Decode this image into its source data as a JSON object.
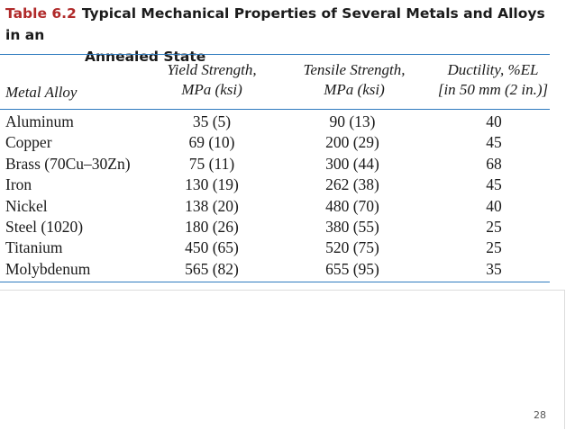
{
  "table": {
    "label": "Table 6.2",
    "title_line1": "Typical Mechanical Properties of Several Metals and Alloys in an",
    "title_line2": "Annealed State",
    "headers": {
      "alloy": "Metal Alloy",
      "yield_line1": "Yield Strength,",
      "yield_line2": "MPa (ksi)",
      "tensile_line1": "Tensile Strength,",
      "tensile_line2": "MPa (ksi)",
      "ductility_line1": "Ductility, %EL",
      "ductility_line2": "[in 50 mm (2 in.)]"
    },
    "rows": [
      {
        "alloy": "Aluminum",
        "yield": "35 (5)",
        "tensile": "90 (13)",
        "ductility": "40"
      },
      {
        "alloy": "Copper",
        "yield": "69 (10)",
        "tensile": "200 (29)",
        "ductility": "45"
      },
      {
        "alloy": "Brass (70Cu–30Zn)",
        "yield": "75 (11)",
        "tensile": "300 (44)",
        "ductility": "68"
      },
      {
        "alloy": "Iron",
        "yield": "130 (19)",
        "tensile": "262 (38)",
        "ductility": "45"
      },
      {
        "alloy": "Nickel",
        "yield": "138 (20)",
        "tensile": "480 (70)",
        "ductility": "40"
      },
      {
        "alloy": "Steel (1020)",
        "yield": "180 (26)",
        "tensile": "380 (55)",
        "ductility": "25"
      },
      {
        "alloy": "Titanium",
        "yield": "450 (65)",
        "tensile": "520 (75)",
        "ductility": "25"
      },
      {
        "alloy": "Molybdenum",
        "yield": "565 (82)",
        "tensile": "655 (95)",
        "ductility": "35"
      }
    ]
  },
  "slide": {
    "page_number": "28"
  },
  "colors": {
    "label": "#b02a2a",
    "rule": "#2f7bbf"
  }
}
